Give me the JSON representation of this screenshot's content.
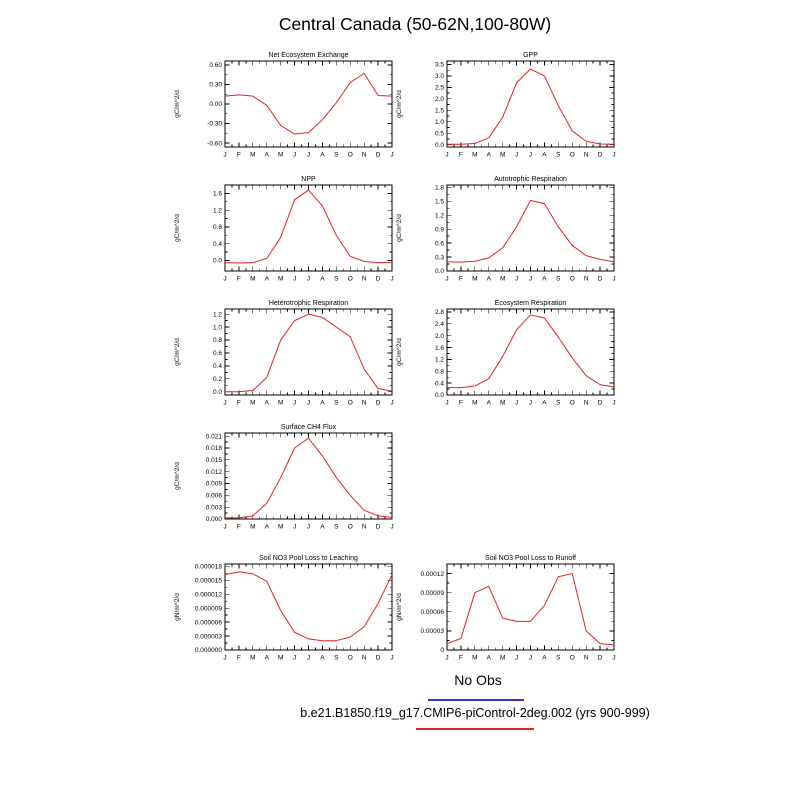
{
  "title": "Central Canada (50-62N,100-80W)",
  "months": [
    "J",
    "F",
    "M",
    "A",
    "M",
    "J",
    "J",
    "A",
    "S",
    "O",
    "N",
    "D",
    "J"
  ],
  "legend": {
    "no_obs": {
      "label": "No Obs",
      "color": "#3333cc"
    },
    "model": {
      "label": "b.e21.B1850.f19_g17.CMIP6-piControl-2deg.002 (yrs 900-999)",
      "color": "#e32222"
    }
  },
  "axis_color": "#000000",
  "chart_data": [
    {
      "type": "line",
      "title": "Net Ecosystem Exchange",
      "ylabel": "gC/m^2/d",
      "ymin": -0.66,
      "ymax": 0.66,
      "ytick_values": [
        -0.6,
        -0.3,
        0.0,
        0.3,
        0.6
      ],
      "ytick_labels": [
        "-0.60",
        "-0.30",
        "0.00",
        "0.30",
        "0.60"
      ],
      "values": [
        0.12,
        0.14,
        0.12,
        -0.02,
        -0.33,
        -0.46,
        -0.44,
        -0.24,
        0.02,
        0.33,
        0.47,
        0.13,
        0.12
      ]
    },
    {
      "type": "line",
      "title": "GPP",
      "ylabel": "gC/m^2/d",
      "ymin": -0.1,
      "ymax": 3.65,
      "ytick_values": [
        0.0,
        0.5,
        1.0,
        1.5,
        2.0,
        2.5,
        3.0,
        3.5
      ],
      "ytick_labels": [
        "0.0",
        "0.5",
        "1.0",
        "1.5",
        "2.0",
        "2.5",
        "3.0",
        "3.5"
      ],
      "values": [
        0.02,
        0.02,
        0.05,
        0.3,
        1.2,
        2.7,
        3.3,
        3.0,
        1.7,
        0.6,
        0.15,
        0.03,
        0.02
      ]
    },
    {
      "type": "line",
      "title": "NPP",
      "ylabel": "gC/m^2/d",
      "ymin": -0.25,
      "ymax": 1.8,
      "ytick_values": [
        0.0,
        0.4,
        0.8,
        1.2,
        1.6
      ],
      "ytick_labels": [
        "0.0",
        "0.4",
        "0.8",
        "1.2",
        "1.6"
      ],
      "values": [
        -0.05,
        -0.06,
        -0.05,
        0.05,
        0.55,
        1.45,
        1.68,
        1.3,
        0.6,
        0.1,
        -0.02,
        -0.05,
        -0.05
      ]
    },
    {
      "type": "line",
      "title": "Autotrophic Respiration",
      "ylabel": "gC/m^2/d",
      "ymin": 0.0,
      "ymax": 1.85,
      "ytick_values": [
        0.0,
        0.3,
        0.6,
        0.9,
        1.2,
        1.5,
        1.8
      ],
      "ytick_labels": [
        "0.0",
        "0.3",
        "0.6",
        "0.9",
        "1.2",
        "1.5",
        "1.8"
      ],
      "values": [
        0.2,
        0.19,
        0.21,
        0.28,
        0.5,
        0.95,
        1.52,
        1.45,
        0.95,
        0.55,
        0.33,
        0.25,
        0.2
      ]
    },
    {
      "type": "line",
      "title": "Heterotrophic Respiration",
      "ylabel": "gC/m^2/d",
      "ymin": -0.05,
      "ymax": 1.28,
      "ytick_values": [
        0.0,
        0.2,
        0.4,
        0.6,
        0.8,
        1.0,
        1.2
      ],
      "ytick_labels": [
        "0.0",
        "0.2",
        "0.4",
        "0.6",
        "0.8",
        "1.0",
        "1.2"
      ],
      "values": [
        0.0,
        0.0,
        0.02,
        0.22,
        0.8,
        1.1,
        1.2,
        1.15,
        1.0,
        0.85,
        0.35,
        0.05,
        0.01
      ]
    },
    {
      "type": "line",
      "title": "Ecosystem Respiration",
      "ylabel": "gC/m^2/d",
      "ymin": 0.0,
      "ymax": 2.9,
      "ytick_values": [
        0.0,
        0.4,
        0.8,
        1.2,
        1.6,
        2.0,
        2.4,
        2.8
      ],
      "ytick_labels": [
        "0.0",
        "0.4",
        "0.8",
        "1.2",
        "1.6",
        "2.0",
        "2.4",
        "2.8"
      ],
      "values": [
        0.25,
        0.25,
        0.3,
        0.55,
        1.3,
        2.2,
        2.7,
        2.6,
        1.95,
        1.25,
        0.65,
        0.35,
        0.27
      ]
    },
    {
      "type": "line",
      "title": "Surface CH4 Flux",
      "ylabel": "gC/m^2/d",
      "ymin": 0.0,
      "ymax": 0.0218,
      "ytick_values": [
        0.0,
        0.003,
        0.006,
        0.009,
        0.012,
        0.015,
        0.018,
        0.021
      ],
      "ytick_labels": [
        "0.000",
        "0.003",
        "0.006",
        "0.009",
        "0.012",
        "0.015",
        "0.018",
        "0.021"
      ],
      "values": [
        0.0003,
        0.0003,
        0.0008,
        0.004,
        0.0105,
        0.018,
        0.0205,
        0.016,
        0.0105,
        0.006,
        0.0022,
        0.0008,
        0.0004
      ]
    },
    {
      "type": "line",
      "title": "Soil NO3 Pool Loss to Leaching",
      "ylabel": "gN/m^2/d",
      "ymin": 0.0,
      "ymax": 1.85e-05,
      "ytick_values": [
        0.0,
        3e-06,
        6e-06,
        9e-06,
        1.2e-05,
        1.5e-05,
        1.8e-05
      ],
      "ytick_labels": [
        "0.000000",
        "0.000003",
        "0.000006",
        "0.000009",
        "0.000012",
        "0.000015",
        "0.000018"
      ],
      "values": [
        1.62e-05,
        1.68e-05,
        1.64e-05,
        1.48e-05,
        8.5e-06,
        3.8e-06,
        2.4e-06,
        2e-06,
        2e-06,
        2.8e-06,
        5e-06,
        1e-05,
        1.62e-05
      ]
    },
    {
      "type": "line",
      "title": "Soil NO3 Pool Loss to Runoff",
      "ylabel": "gN/m^2/d",
      "ymin": 0.0,
      "ymax": 0.000135,
      "ytick_values": [
        0.0,
        3e-05,
        6e-05,
        9e-05,
        0.00012
      ],
      "ytick_labels": [
        "0",
        "0.00003",
        "0.00006",
        "0.00009",
        "0.00012"
      ],
      "values": [
        1e-05,
        1.8e-05,
        9e-05,
        0.0001,
        5e-05,
        4.5e-05,
        4.5e-05,
        7e-05,
        0.000115,
        0.00012,
        3e-05,
        1e-05,
        8e-06
      ]
    }
  ]
}
